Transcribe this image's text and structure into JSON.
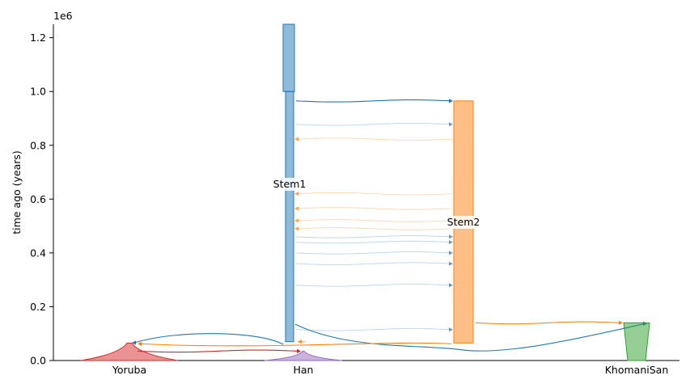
{
  "chart_data": {
    "type": "demography",
    "ylabel": "time ago (years)",
    "y_offset_label": "1e6",
    "y_ticks": [
      "0.0",
      "0.2",
      "0.4",
      "0.6",
      "0.8",
      "1.0",
      "1.2"
    ],
    "y_tick_values": [
      0,
      200000,
      400000,
      600000,
      800000,
      1000000,
      1200000
    ],
    "ylim": [
      0,
      1250000
    ],
    "demes": [
      {
        "name": "Stem1",
        "color": "#1f77b4",
        "start_time": 1250000,
        "end_time": 70000
      },
      {
        "name": "Stem2",
        "color": "#ff7f0e",
        "start_time": 965000,
        "end_time": 65000
      },
      {
        "name": "Yoruba",
        "color": "#d62728",
        "start_time": 65000,
        "end_time": 0
      },
      {
        "name": "Han",
        "color": "#9467bd",
        "start_time": 35000,
        "end_time": 0
      },
      {
        "name": "KhomaniSan",
        "color": "#2ca02c",
        "start_time": 140000,
        "end_time": 0
      }
    ],
    "x_labels": [
      "Yoruba",
      "Han",
      "KhomaniSan"
    ],
    "migrations": [
      {
        "source": "Stem1",
        "dest": "Stem2",
        "time": 965000
      },
      {
        "source": "Stem1",
        "dest": "Stem2",
        "time": 878000
      },
      {
        "source": "Stem2",
        "dest": "Stem1",
        "time": 823000
      },
      {
        "source": "Stem2",
        "dest": "Stem1",
        "time": 620000
      },
      {
        "source": "Stem2",
        "dest": "Stem1",
        "time": 565000
      },
      {
        "source": "Stem2",
        "dest": "Stem1",
        "time": 520000
      },
      {
        "source": "Stem2",
        "dest": "Stem1",
        "time": 490000
      },
      {
        "source": "Stem1",
        "dest": "Stem2",
        "time": 460000
      },
      {
        "source": "Stem1",
        "dest": "Stem2",
        "time": 440000
      },
      {
        "source": "Stem1",
        "dest": "Stem2",
        "time": 400000
      },
      {
        "source": "Stem1",
        "dest": "Stem2",
        "time": 360000
      },
      {
        "source": "Stem1",
        "dest": "Stem2",
        "time": 280000
      },
      {
        "source": "Stem1",
        "dest": "Stem2",
        "time": 115000
      },
      {
        "source": "Stem2",
        "dest": "KhomaniSan",
        "time": 140000
      },
      {
        "source": "Stem1",
        "dest": "KhomaniSan",
        "time": 135000
      },
      {
        "source": "Stem1",
        "dest": "Yoruba",
        "time": 65000
      },
      {
        "source": "Stem2",
        "dest": "Yoruba",
        "time": 60000
      },
      {
        "source": "Yoruba",
        "dest": "Han",
        "time": 35000
      },
      {
        "source": "Stem2",
        "dest": "Stem1",
        "time": 70000
      }
    ]
  }
}
